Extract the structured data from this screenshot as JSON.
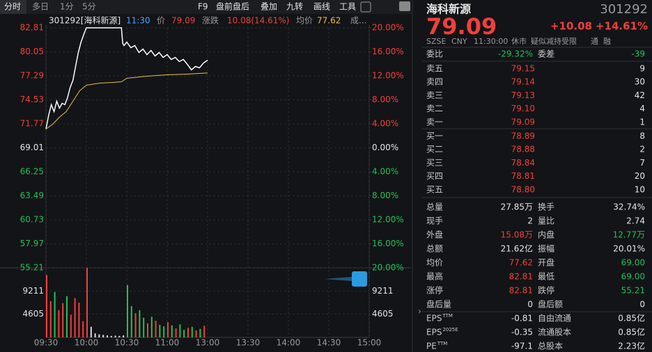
{
  "toolbar": {
    "tabs": [
      "分时",
      "多日",
      "1分",
      "5分"
    ],
    "tools": [
      "F9",
      "盘前盘后",
      "叠加",
      "九转",
      "画线",
      "工具"
    ]
  },
  "info_line": {
    "name": "301292[海科新源]",
    "time": "11:30",
    "price_label": "价",
    "price": "79.09",
    "change_label": "涨跌",
    "change": "10.08(14.61%)",
    "avg_label": "均价",
    "avg": "77.62",
    "more": "成..."
  },
  "chart_data": {
    "type": "line",
    "series": [
      {
        "color": "#ffffff",
        "x": [
          "09:30",
          "09:32",
          "09:34",
          "09:36",
          "09:38",
          "09:40",
          "09:42",
          "09:44",
          "09:46",
          "09:48",
          "09:50",
          "09:52",
          "09:54",
          "09:56",
          "09:58",
          "10:00",
          "10:26",
          "10:27",
          "10:28",
          "10:30",
          "10:33",
          "10:36",
          "10:39",
          "10:42",
          "10:45",
          "10:48",
          "10:51",
          "10:54",
          "10:57",
          "11:00",
          "11:03",
          "11:06",
          "11:09",
          "11:12",
          "11:15",
          "11:18",
          "11:21",
          "11:24",
          "11:27",
          "11:30"
        ],
        "values": [
          71.17,
          72.77,
          73.97,
          73.17,
          74.37,
          73.57,
          74.13,
          73.97,
          74.77,
          75.97,
          76.77,
          78.37,
          79.97,
          81.17,
          82.01,
          82.81,
          82.81,
          81.01,
          80.77,
          81.17,
          80.53,
          80.77,
          79.97,
          80.37,
          79.73,
          80.21,
          79.57,
          79.97,
          79.41,
          79.73,
          79.17,
          79.41,
          78.93,
          79.17,
          78.61,
          77.97,
          78.37,
          78.21,
          78.77,
          79.09
        ]
      },
      {
        "color": "#e8c14a",
        "x": [
          "09:30",
          "09:35",
          "09:40",
          "09:45",
          "09:50",
          "09:55",
          "10:00",
          "10:10",
          "10:20",
          "10:26",
          "10:30",
          "10:45",
          "11:00",
          "11:15",
          "11:30"
        ],
        "values": [
          71.17,
          71.73,
          72.53,
          73.17,
          74.37,
          75.57,
          76.21,
          76.45,
          76.53,
          76.61,
          77.01,
          77.25,
          77.41,
          77.49,
          77.62
        ]
      }
    ],
    "ylim": [
      55.21,
      82.81
    ],
    "yticks": [
      82.81,
      80.05,
      77.29,
      74.53,
      71.77,
      69.01,
      66.25,
      63.49,
      60.73,
      57.97,
      55.21
    ],
    "y2lim": [
      -20,
      20
    ],
    "y2ticks": [
      {
        "value": 20,
        "label": "20.00%"
      },
      {
        "value": 16,
        "label": "16.00%"
      },
      {
        "value": 12,
        "label": "12.00%"
      },
      {
        "value": 8,
        "label": "8.00%"
      },
      {
        "value": 4,
        "label": "4.00%"
      },
      {
        "value": 0,
        "label": "0.00%"
      },
      {
        "value": -4,
        "label": "4.00%"
      },
      {
        "value": -8,
        "label": "8.00%"
      },
      {
        "value": -12,
        "label": "12.00%"
      },
      {
        "value": -16,
        "label": "16.00%"
      },
      {
        "value": -20,
        "label": "20.00%"
      }
    ],
    "xticks": [
      "09:30",
      "10:00",
      "10:30",
      "11:00",
      "13:00",
      "13:30",
      "14:00",
      "14:30",
      "15:00"
    ],
    "grid": true,
    "volume": {
      "ylim": [
        0,
        13816
      ],
      "yticks": [
        9211,
        4605
      ],
      "x": [
        "09:30",
        "09:33",
        "09:36",
        "09:39",
        "09:42",
        "09:45",
        "09:48",
        "09:51",
        "09:54",
        "09:57",
        "10:00",
        "10:03",
        "10:06",
        "10:09",
        "10:12",
        "10:15",
        "10:18",
        "10:21",
        "10:24",
        "10:27",
        "10:30",
        "10:33",
        "10:36",
        "10:39",
        "10:42",
        "10:45",
        "10:48",
        "10:51",
        "10:54",
        "10:57",
        "11:00",
        "11:03",
        "11:06",
        "11:09",
        "11:12",
        "11:15",
        "11:18",
        "11:21",
        "11:24",
        "11:27"
      ],
      "values": [
        12400,
        7200,
        9000,
        5400,
        6800,
        8200,
        4500,
        7800,
        6900,
        3200,
        13800,
        2100,
        800,
        600,
        500,
        400,
        300,
        350,
        300,
        400,
        10400,
        6200,
        4800,
        5400,
        3900,
        2800,
        4100,
        3300,
        2500,
        2200,
        3000,
        2400,
        1800,
        2600,
        1500,
        1900,
        2100,
        1400,
        1700,
        2300
      ],
      "colors": [
        "#f0403c",
        "#f0403c",
        "#22c05a",
        "#f0403c",
        "#f0403c",
        "#22c05a",
        "#f0403c",
        "#f0403c",
        "#f0403c",
        "#f0403c",
        "#f0403c",
        "#dddddd",
        "#dddddd",
        "#dddddd",
        "#dddddd",
        "#dddddd",
        "#dddddd",
        "#dddddd",
        "#dddddd",
        "#dddddd",
        "#22c05a",
        "#22c05a",
        "#f0403c",
        "#22c05a",
        "#22c05a",
        "#f0403c",
        "#22c05a",
        "#f0403c",
        "#22c05a",
        "#22c05a",
        "#f0403c",
        "#22c05a",
        "#f0403c",
        "#22c05a",
        "#22c05a",
        "#f0403c",
        "#22c05a",
        "#f0403c",
        "#22c05a",
        "#f0403c"
      ]
    }
  },
  "quote": {
    "name": "海科新源",
    "code": "301292",
    "price": "79.09",
    "change": "+10.08",
    "change_pct": "+14.61%",
    "tags": [
      "SZSE",
      "CNY",
      "11:30:00",
      "休市",
      "疑似减持受限",
      "通",
      "融"
    ],
    "ratio": {
      "label": "委比",
      "value": "-29.32%"
    },
    "diff": {
      "label": "委差",
      "value": "-39"
    },
    "asks": [
      {
        "label": "卖五",
        "price": "79.15",
        "volume": "9"
      },
      {
        "label": "卖四",
        "price": "79.14",
        "volume": "30"
      },
      {
        "label": "卖三",
        "price": "79.13",
        "volume": "42"
      },
      {
        "label": "卖二",
        "price": "79.10",
        "volume": "4"
      },
      {
        "label": "卖一",
        "price": "79.09",
        "volume": "1"
      }
    ],
    "bids": [
      {
        "label": "买一",
        "price": "78.89",
        "volume": "8"
      },
      {
        "label": "买二",
        "price": "78.88",
        "volume": "2"
      },
      {
        "label": "买三",
        "price": "78.84",
        "volume": "7"
      },
      {
        "label": "买四",
        "price": "78.81",
        "volume": "20"
      },
      {
        "label": "买五",
        "price": "78.80",
        "volume": "10"
      }
    ],
    "stats": [
      [
        {
          "label": "总量",
          "value": "27.85万",
          "color": "white"
        },
        {
          "label": "换手",
          "value": "32.74%",
          "color": "white"
        }
      ],
      [
        {
          "label": "现手",
          "value": "2",
          "color": "white"
        },
        {
          "label": "量比",
          "value": "2.74",
          "color": "white"
        }
      ],
      [
        {
          "label": "外盘",
          "value": "15.08万",
          "color": "red"
        },
        {
          "label": "内盘",
          "value": "12.77万",
          "color": "green"
        }
      ],
      [
        {
          "label": "总额",
          "value": "21.62亿",
          "color": "white"
        },
        {
          "label": "振幅",
          "value": "20.01%",
          "color": "white"
        }
      ],
      [
        {
          "label": "均价",
          "value": "77.62",
          "color": "red"
        },
        {
          "label": "开盘",
          "value": "69.00",
          "color": "green"
        }
      ],
      [
        {
          "label": "最高",
          "value": "82.81",
          "color": "red"
        },
        {
          "label": "最低",
          "value": "69.00",
          "color": "green"
        }
      ],
      [
        {
          "label": "涨停",
          "value": "82.81",
          "color": "red"
        },
        {
          "label": "跌停",
          "value": "55.21",
          "color": "green"
        }
      ],
      [
        {
          "label": "盘后量",
          "value": "0",
          "color": "white"
        },
        {
          "label": "盘后额",
          "value": "0",
          "color": "white"
        }
      ],
      [
        {
          "label": "EPS",
          "sup": "TTM",
          "value": "-0.81",
          "color": "white"
        },
        {
          "label": "自由流通",
          "value": "0.85亿",
          "color": "white"
        }
      ],
      [
        {
          "label": "EPS",
          "sup": "2025E",
          "value": "-0.35",
          "color": "white"
        },
        {
          "label": "流通股本",
          "value": "0.85亿",
          "color": "white"
        }
      ],
      [
        {
          "label": "PE",
          "sup": "TTM",
          "value": "-97.1",
          "color": "white"
        },
        {
          "label": "总股本",
          "value": "2.23亿",
          "color": "white"
        }
      ]
    ]
  }
}
